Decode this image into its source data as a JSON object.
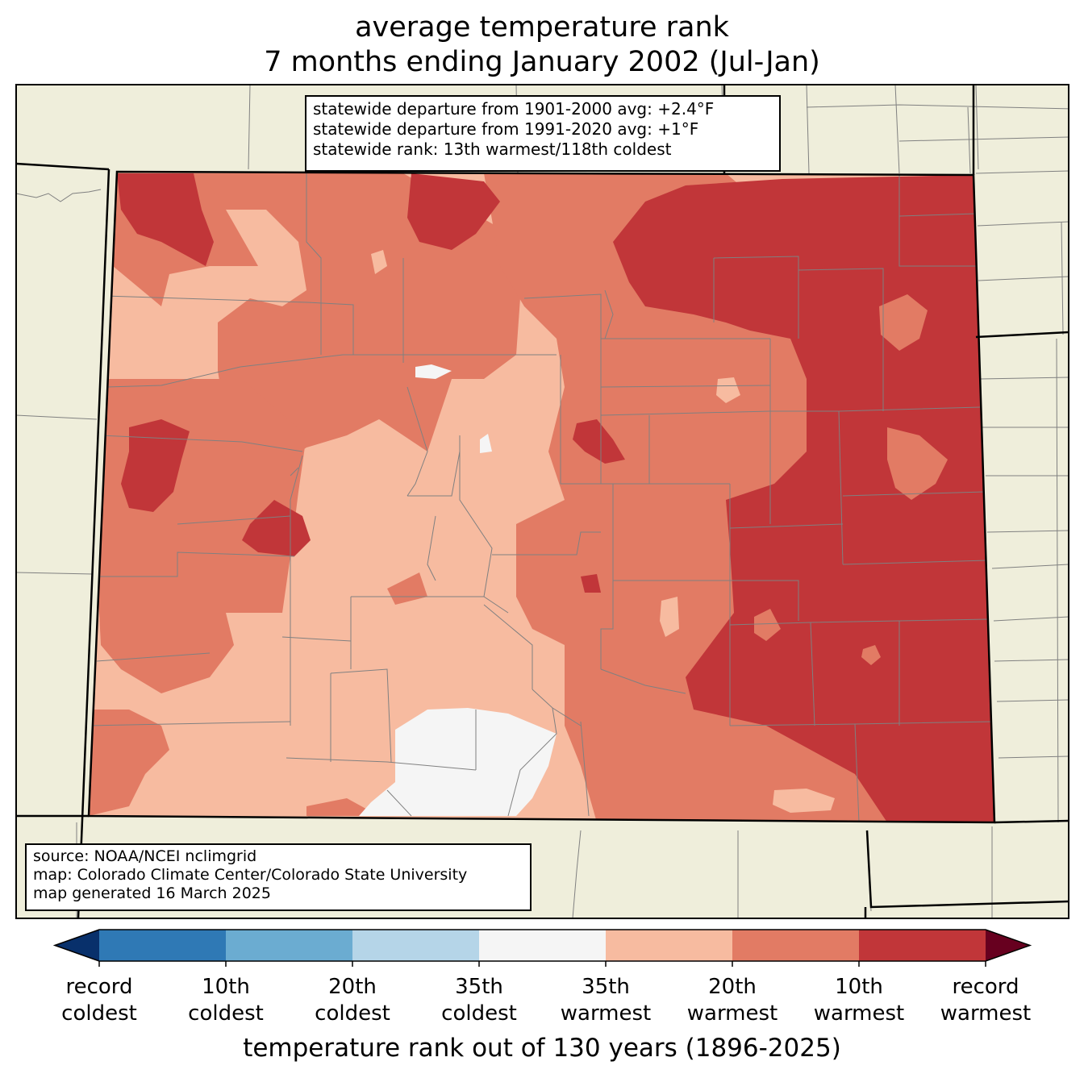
{
  "title": {
    "line1": "average temperature rank",
    "line2": "7 months ending January 2002 (Jul-Jan)"
  },
  "stats": {
    "line1": "statewide departure from 1901-2000 avg: +2.4°F",
    "line2": "statewide departure from 1991-2020 avg: +1°F",
    "line3": "statewide rank: 13th warmest/118th coldest"
  },
  "credits": {
    "line1": "source: NOAA/NCEI nclimgrid",
    "line2": "map: Colorado Climate Center/Colorado State University",
    "line3": "map generated 16 March 2025"
  },
  "colorbar": {
    "title": "temperature rank out of 130 years (1896-2025)",
    "bins": [
      {
        "color": "#08306b"
      },
      {
        "color": "#2f79b5"
      },
      {
        "color": "#6bacd1"
      },
      {
        "color": "#b5d5e8"
      },
      {
        "color": "#f5f5f5"
      },
      {
        "color": "#f7bba0"
      },
      {
        "color": "#e27b64"
      },
      {
        "color": "#c13639"
      },
      {
        "color": "#67001f"
      }
    ],
    "tick_labels": [
      {
        "line1": "record",
        "line2": "coldest"
      },
      {
        "line1": "10th",
        "line2": "coldest"
      },
      {
        "line1": "20th",
        "line2": "coldest"
      },
      {
        "line1": "35th",
        "line2": "coldest"
      },
      {
        "line1": "35th",
        "line2": "warmest"
      },
      {
        "line1": "20th",
        "line2": "warmest"
      },
      {
        "line1": "10th",
        "line2": "warmest"
      },
      {
        "line1": "record",
        "line2": "warmest"
      }
    ]
  },
  "colors": {
    "land_outside": "#efeedb",
    "state_border": "#000000",
    "county_border": "#808080",
    "rank_20th_35th_warmest": "#f7bba0",
    "rank_10th_20th_warmest": "#e27b64",
    "rank_top10_warmest": "#c13639",
    "rank_near_normal": "#f5f5f5"
  }
}
